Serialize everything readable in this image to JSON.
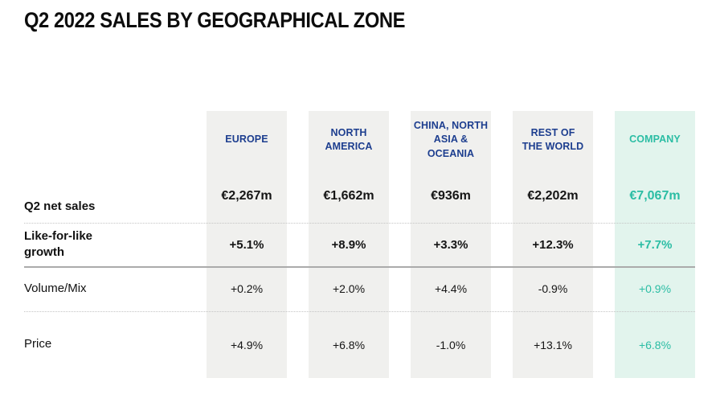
{
  "title": "Q2 2022 SALES BY GEOGRAPHICAL ZONE",
  "colors": {
    "page_bg": "#ffffff",
    "title_text": "#0d0d0d",
    "zone_header": "#1d3e8f",
    "company_accent": "#2bbda4",
    "zone_bg": "#f0f0ee",
    "company_bg": "#e2f4ed",
    "value_text": "#151515",
    "label_text": "#111111",
    "solid_divider": "#ababab",
    "dotted_divider": "#c4c4c4"
  },
  "header_lines": [
    [
      "EUROPE"
    ],
    [
      "NORTH",
      "AMERICA"
    ],
    [
      "CHINA, NORTH",
      "ASIA & OCEANIA"
    ],
    [
      "REST OF",
      "THE WORLD"
    ],
    [
      "COMPANY"
    ]
  ],
  "label_lines": [
    [
      "Q2 net sales"
    ],
    [
      "Like-for-like",
      "growth"
    ],
    [
      "Volume/Mix"
    ],
    [
      "Price"
    ]
  ],
  "chart_data": {
    "type": "table",
    "title": "Q2 2022 SALES BY GEOGRAPHICAL ZONE",
    "columns": [
      "EUROPE",
      "NORTH AMERICA",
      "CHINA, NORTH ASIA & OCEANIA",
      "REST OF THE WORLD",
      "COMPANY"
    ],
    "rows": [
      {
        "label": "Q2 net sales",
        "values": [
          "€2,267m",
          "€1,662m",
          "€936m",
          "€2,202m",
          "€7,067m"
        ]
      },
      {
        "label": "Like-for-like growth",
        "values": [
          "+5.1%",
          "+8.9%",
          "+3.3%",
          "+12.3%",
          "+7.7%"
        ]
      },
      {
        "label": "Volume/Mix",
        "values": [
          "+0.2%",
          "+2.0%",
          "+4.4%",
          "-0.9%",
          "+0.9%"
        ]
      },
      {
        "label": "Price",
        "values": [
          "+4.9%",
          "+6.8%",
          "-1.0%",
          "+13.1%",
          "+6.8%"
        ]
      }
    ]
  }
}
